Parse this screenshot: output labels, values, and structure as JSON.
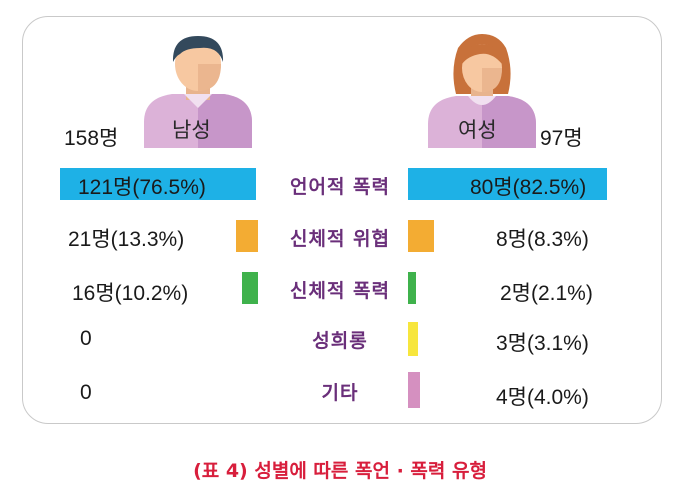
{
  "chart_data": {
    "type": "bar",
    "title": "",
    "categories": [
      "언어적 폭력",
      "신체적 위협",
      "신체적 폭력",
      "성희롱",
      "기타"
    ],
    "series": [
      {
        "name": "남성",
        "total_label": "158명",
        "values": [
          76.5,
          13.3,
          10.2,
          0,
          0
        ],
        "labels": [
          "121명(76.5%)",
          "21명(13.3%)",
          "16명(10.2%)",
          "0",
          "0"
        ]
      },
      {
        "name": "여성",
        "total_label": "97명",
        "values": [
          82.5,
          8.3,
          2.1,
          3.1,
          4.0
        ],
        "labels": [
          "80명(82.5%)",
          "8명(8.3%)",
          "2명(2.1%)",
          "3명(3.1%)",
          "4명(4.0%)"
        ]
      }
    ],
    "colors": [
      "#1eb1e6",
      "#f3ac33",
      "#3fb24c",
      "#f7e63d",
      "#d590c0"
    ],
    "caption": "(표 4)  성별에 따른 폭언 · 폭력 유형"
  },
  "person_colors": {
    "male_hair": "#33495c",
    "female_hair": "#c8713a",
    "skin": "#f7c8a1",
    "shirt": "#dcb2d8",
    "shirt_shade": "#c796c9"
  }
}
